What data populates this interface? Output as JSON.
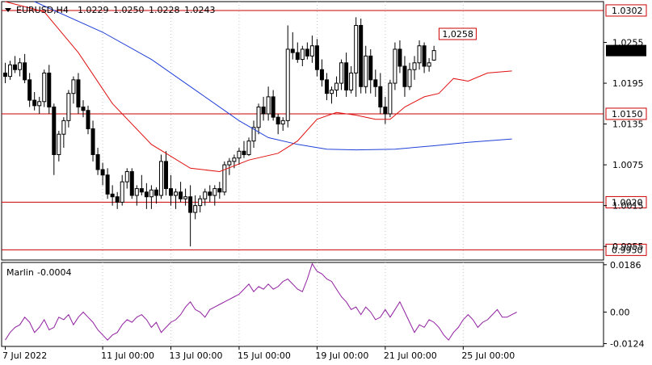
{
  "chart_data": {
    "type": "candlestick",
    "header": {
      "symbol": "EURUSD,H4",
      "open": "1.0229",
      "high": "1.0250",
      "low": "1.0228",
      "close": "1.0243"
    },
    "main_panel": {
      "ylim": [
        0.9935,
        1.0315
      ],
      "y_ticks": [
        "1.0255",
        "1.0195",
        "1.0135",
        "1.0075",
        "1.0015",
        "0.9955"
      ],
      "current_price": "1.0243",
      "levels": [
        {
          "label": "1.0302",
          "value": 1.0302
        },
        {
          "label": "1.0150",
          "value": 1.015
        },
        {
          "label": "1.0020",
          "value": 1.002
        },
        {
          "label": "0.9950",
          "value": 0.995
        }
      ],
      "annotation": {
        "label": "1,0258",
        "value": 1.0258,
        "bar": 97
      },
      "candles": [
        [
          1.021,
          1.0225,
          1.0195,
          1.0205
        ],
        [
          1.0205,
          1.0228,
          1.02,
          1.0222
        ],
        [
          1.0222,
          1.0235,
          1.021,
          1.0215
        ],
        [
          1.0215,
          1.0232,
          1.0205,
          1.0225
        ],
        [
          1.0225,
          1.0238,
          1.0195,
          1.02
        ],
        [
          1.02,
          1.021,
          1.016,
          1.017
        ],
        [
          1.017,
          1.0182,
          1.0155,
          1.0162
        ],
        [
          1.0162,
          1.0175,
          1.015,
          1.0168
        ],
        [
          1.0168,
          1.0215,
          1.016,
          1.021
        ],
        [
          1.021,
          1.0222,
          1.015,
          1.016
        ],
        [
          1.016,
          1.0165,
          1.006,
          1.009
        ],
        [
          1.009,
          1.0125,
          1.008,
          1.012
        ],
        [
          1.012,
          1.0145,
          1.01,
          1.014
        ],
        [
          1.014,
          1.0185,
          1.013,
          1.018
        ],
        [
          1.018,
          1.0205,
          1.0165,
          1.02
        ],
        [
          1.02,
          1.021,
          1.015,
          1.016
        ],
        [
          1.016,
          1.017,
          1.0145,
          1.0155
        ],
        [
          1.0155,
          1.0162,
          1.012,
          1.0128
        ],
        [
          1.0128,
          1.014,
          1.008,
          1.009
        ],
        [
          1.009,
          1.01,
          1.006,
          1.0068
        ],
        [
          1.0068,
          1.0078,
          1.0045,
          1.006
        ],
        [
          1.006,
          1.007,
          1.0025,
          1.0032
        ],
        [
          1.0032,
          1.0045,
          1.0015,
          1.0028
        ],
        [
          1.0028,
          1.0035,
          1.001,
          1.002
        ],
        [
          1.002,
          1.006,
          1.0015,
          1.005
        ],
        [
          1.005,
          1.007,
          1.004,
          1.0065
        ],
        [
          1.0065,
          1.007,
          1.0025,
          1.003
        ],
        [
          1.003,
          1.0045,
          1.0015,
          1.004
        ],
        [
          1.004,
          1.006,
          1.003,
          1.0035
        ],
        [
          1.0035,
          1.0048,
          1.001,
          1.0028
        ],
        [
          1.0028,
          1.0045,
          1.001,
          1.0038
        ],
        [
          1.0038,
          1.0042,
          1.0018,
          1.003
        ],
        [
          1.003,
          1.009,
          1.0025,
          1.008
        ],
        [
          1.008,
          1.0095,
          1.003,
          1.004
        ],
        [
          1.004,
          1.006,
          1.0015,
          1.003
        ],
        [
          1.003,
          1.004,
          1.001,
          1.0035
        ],
        [
          1.0035,
          1.005,
          1.002,
          1.0025
        ],
        [
          1.0025,
          1.004,
          1.0015,
          1.0028
        ],
        [
          1.0028,
          1.0045,
          0.9955,
          1.0005
        ],
        [
          1.0005,
          1.003,
          0.9995,
          1.0015
        ],
        [
          1.0015,
          1.003,
          1.0005,
          1.0025
        ],
        [
          1.0025,
          1.004,
          1.0015,
          1.0035
        ],
        [
          1.0035,
          1.0045,
          1.002,
          1.003
        ],
        [
          1.003,
          1.0045,
          1.0015,
          1.004
        ],
        [
          1.004,
          1.005,
          1.0025,
          1.0035
        ],
        [
          1.0035,
          1.008,
          1.003,
          1.0075
        ],
        [
          1.0075,
          1.0085,
          1.006,
          1.008
        ],
        [
          1.008,
          1.009,
          1.007,
          1.0085
        ],
        [
          1.0085,
          1.01,
          1.0075,
          1.0095
        ],
        [
          1.0095,
          1.011,
          1.0085,
          1.009
        ],
        [
          1.009,
          1.0115,
          1.0088,
          1.011
        ],
        [
          1.011,
          1.014,
          1.01,
          1.013
        ],
        [
          1.013,
          1.0165,
          1.012,
          1.016
        ],
        [
          1.016,
          1.0175,
          1.014,
          1.015
        ],
        [
          1.015,
          1.019,
          1.014,
          1.0175
        ],
        [
          1.0175,
          1.0185,
          1.014,
          1.0145
        ],
        [
          1.0145,
          1.015,
          1.012,
          1.0135
        ],
        [
          1.0135,
          1.0145,
          1.0125,
          1.014
        ],
        [
          1.014,
          1.028,
          1.013,
          1.0245
        ],
        [
          1.0245,
          1.027,
          1.023,
          1.024
        ],
        [
          1.024,
          1.0255,
          1.0225,
          1.023
        ],
        [
          1.023,
          1.025,
          1.022,
          1.0245
        ],
        [
          1.0245,
          1.0255,
          1.023,
          1.0235
        ],
        [
          1.0235,
          1.0265,
          1.0225,
          1.025
        ],
        [
          1.025,
          1.026,
          1.0205,
          1.0215
        ],
        [
          1.0215,
          1.023,
          1.019,
          1.02
        ],
        [
          1.02,
          1.021,
          1.017,
          1.018
        ],
        [
          1.018,
          1.019,
          1.0165,
          1.0185
        ],
        [
          1.0185,
          1.0205,
          1.0175,
          1.0195
        ],
        [
          1.0195,
          1.023,
          1.0185,
          1.0225
        ],
        [
          1.0225,
          1.024,
          1.0175,
          1.0185
        ],
        [
          1.0185,
          1.022,
          1.018,
          1.021
        ],
        [
          1.021,
          1.0292,
          1.0175,
          1.028
        ],
        [
          1.028,
          1.029,
          1.018,
          1.019
        ],
        [
          1.019,
          1.025,
          1.018,
          1.0235
        ],
        [
          1.0235,
          1.0245,
          1.018,
          1.02
        ],
        [
          1.02,
          1.0215,
          1.0175,
          1.019
        ],
        [
          1.019,
          1.021,
          1.015,
          1.016
        ],
        [
          1.016,
          1.0175,
          1.0135,
          1.015
        ],
        [
          1.015,
          1.02,
          1.0145,
          1.0195
        ],
        [
          1.0195,
          1.0255,
          1.0185,
          1.0245
        ],
        [
          1.0245,
          1.0258,
          1.021,
          1.022
        ],
        [
          1.022,
          1.0235,
          1.0175,
          1.019
        ],
        [
          1.019,
          1.0225,
          1.0185,
          1.0215
        ],
        [
          1.0215,
          1.0235,
          1.02,
          1.0225
        ],
        [
          1.0225,
          1.0258,
          1.0215,
          1.025
        ],
        [
          1.025,
          1.0255,
          1.021,
          1.022
        ],
        [
          1.022,
          1.0232,
          1.0212,
          1.0225
        ],
        [
          1.0229,
          1.025,
          1.0228,
          1.0243
        ]
      ],
      "ma_fast": [
        [
          0,
          1.0315
        ],
        [
          8,
          1.03
        ],
        [
          15,
          1.024
        ],
        [
          22,
          1.0165
        ],
        [
          30,
          1.0105
        ],
        [
          38,
          1.007
        ],
        [
          44,
          1.0065
        ],
        [
          50,
          1.0082
        ],
        [
          56,
          1.0092
        ],
        [
          60,
          1.011
        ],
        [
          64,
          1.0142
        ],
        [
          68,
          1.0152
        ],
        [
          72,
          1.0148
        ],
        [
          76,
          1.0142
        ],
        [
          79,
          1.0142
        ],
        [
          82,
          1.016
        ],
        [
          86,
          1.0175
        ],
        [
          89,
          1.018
        ],
        [
          92,
          1.0202
        ],
        [
          95,
          1.0198
        ],
        [
          99,
          1.021
        ],
        [
          104,
          1.0213
        ]
      ],
      "ma_slow": [
        [
          6,
          1.0315
        ],
        [
          20,
          1.027
        ],
        [
          30,
          1.023
        ],
        [
          40,
          1.018
        ],
        [
          48,
          1.014
        ],
        [
          54,
          1.0115
        ],
        [
          60,
          1.0105
        ],
        [
          66,
          1.0098
        ],
        [
          72,
          1.0097
        ],
        [
          80,
          1.0098
        ],
        [
          88,
          1.0103
        ],
        [
          95,
          1.0108
        ],
        [
          104,
          1.0113
        ]
      ]
    },
    "indicator": {
      "name": "Marlin",
      "value_label": "-0.0004",
      "ylim": [
        -0.0135,
        0.0195
      ],
      "y_ticks": [
        "0.0186",
        "0.00",
        "-0.0124"
      ],
      "values": [
        -0.011,
        -0.008,
        -0.006,
        -0.005,
        -0.002,
        -0.004,
        -0.008,
        -0.006,
        -0.003,
        -0.007,
        -0.006,
        -0.002,
        -0.003,
        -0.001,
        -0.005,
        -0.002,
        0.0,
        -0.002,
        -0.004,
        -0.007,
        -0.009,
        -0.011,
        -0.009,
        -0.008,
        -0.005,
        -0.003,
        -0.004,
        -0.002,
        -0.001,
        -0.003,
        -0.006,
        -0.004,
        -0.008,
        -0.006,
        -0.004,
        -0.003,
        -0.001,
        0.002,
        0.004,
        0.001,
        0.0,
        -0.002,
        0.001,
        0.002,
        0.003,
        0.004,
        0.005,
        0.006,
        0.007,
        0.009,
        0.011,
        0.008,
        0.01,
        0.009,
        0.011,
        0.009,
        0.01,
        0.012,
        0.013,
        0.011,
        0.009,
        0.008,
        0.013,
        0.019,
        0.016,
        0.015,
        0.013,
        0.012,
        0.009,
        0.006,
        0.004,
        0.001,
        0.002,
        -0.001,
        0.002,
        0.0,
        -0.003,
        -0.002,
        0.001,
        -0.002,
        0.001,
        0.004,
        0.0,
        -0.004,
        -0.008,
        -0.005,
        -0.006,
        -0.003,
        -0.004,
        -0.006,
        -0.009,
        -0.011,
        -0.008,
        -0.006,
        -0.003,
        -0.001,
        -0.003,
        -0.006,
        -0.004,
        -0.003,
        -0.001,
        0.001,
        -0.002,
        -0.002,
        -0.001,
        0.0
      ]
    },
    "x_labels": [
      {
        "label": "7 Jul 2022",
        "bar": 0
      },
      {
        "label": "11 Jul 00:00",
        "bar": 20
      },
      {
        "label": "13 Jul 00:00",
        "bar": 34
      },
      {
        "label": "15 Jul 00:00",
        "bar": 48
      },
      {
        "label": "19 Jul 00:00",
        "bar": 64
      },
      {
        "label": "21 Jul 00:00",
        "bar": 78
      },
      {
        "label": "25 Jul 00:00",
        "bar": 94
      }
    ],
    "colors": {
      "ma_fast": "#e01010",
      "ma_slow": "#2040d8",
      "level": "#cc0000",
      "marlin": "#9020a0",
      "price_tag_bg": "#000000",
      "level_tag_bg": "#ffffff"
    }
  }
}
